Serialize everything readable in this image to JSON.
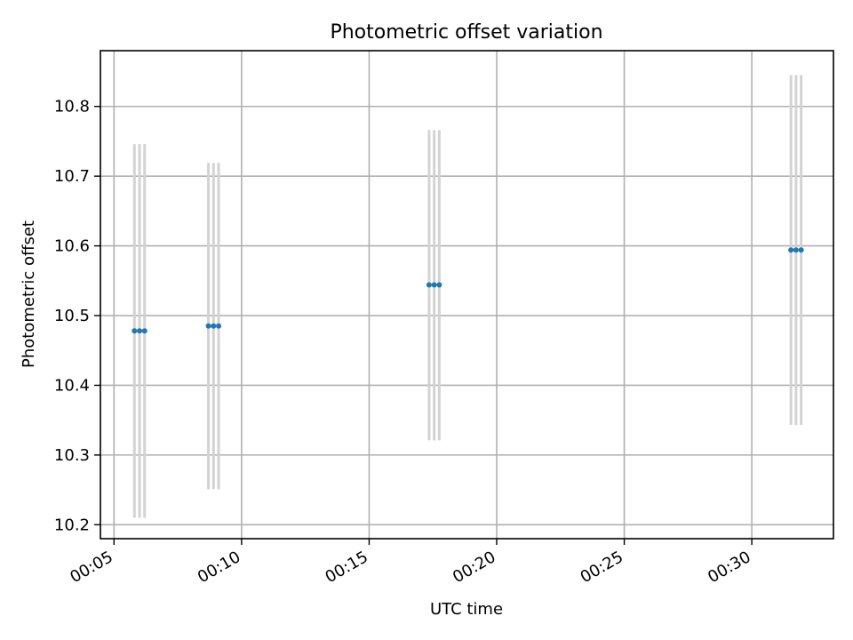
{
  "chart_data": {
    "type": "scatter",
    "title": "Photometric offset variation",
    "xlabel": "UTC time",
    "ylabel": "Photometric offset",
    "x_axis": {
      "ticks": [
        "00:05",
        "00:10",
        "00:15",
        "00:20",
        "00:25",
        "00:30"
      ],
      "xlim": [
        "00:04:28",
        "00:33:12"
      ]
    },
    "y_axis": {
      "ticks": [
        "10.2",
        "10.3",
        "10.4",
        "10.5",
        "10.6",
        "10.7",
        "10.8"
      ],
      "ylim": [
        10.18,
        10.88
      ]
    },
    "grid": true,
    "series": [
      {
        "color": "#1f77b4",
        "errorbar_color": "#d3d3d3",
        "points": [
          {
            "x": "00:05:48",
            "y": 10.478,
            "ylow": 10.21,
            "yhigh": 10.746
          },
          {
            "x": "00:06:00",
            "y": 10.478,
            "ylow": 10.21,
            "yhigh": 10.746
          },
          {
            "x": "00:06:12",
            "y": 10.478,
            "ylow": 10.21,
            "yhigh": 10.746
          },
          {
            "x": "00:08:42",
            "y": 10.485,
            "ylow": 10.251,
            "yhigh": 10.719
          },
          {
            "x": "00:08:54",
            "y": 10.485,
            "ylow": 10.251,
            "yhigh": 10.719
          },
          {
            "x": "00:09:06",
            "y": 10.485,
            "ylow": 10.251,
            "yhigh": 10.719
          },
          {
            "x": "00:17:21",
            "y": 10.544,
            "ylow": 10.321,
            "yhigh": 10.766
          },
          {
            "x": "00:17:33",
            "y": 10.544,
            "ylow": 10.321,
            "yhigh": 10.766
          },
          {
            "x": "00:17:45",
            "y": 10.544,
            "ylow": 10.321,
            "yhigh": 10.766
          },
          {
            "x": "00:31:32",
            "y": 10.594,
            "ylow": 10.343,
            "yhigh": 10.845
          },
          {
            "x": "00:31:44",
            "y": 10.594,
            "ylow": 10.343,
            "yhigh": 10.845
          },
          {
            "x": "00:31:56",
            "y": 10.594,
            "ylow": 10.343,
            "yhigh": 10.845
          }
        ]
      }
    ]
  }
}
